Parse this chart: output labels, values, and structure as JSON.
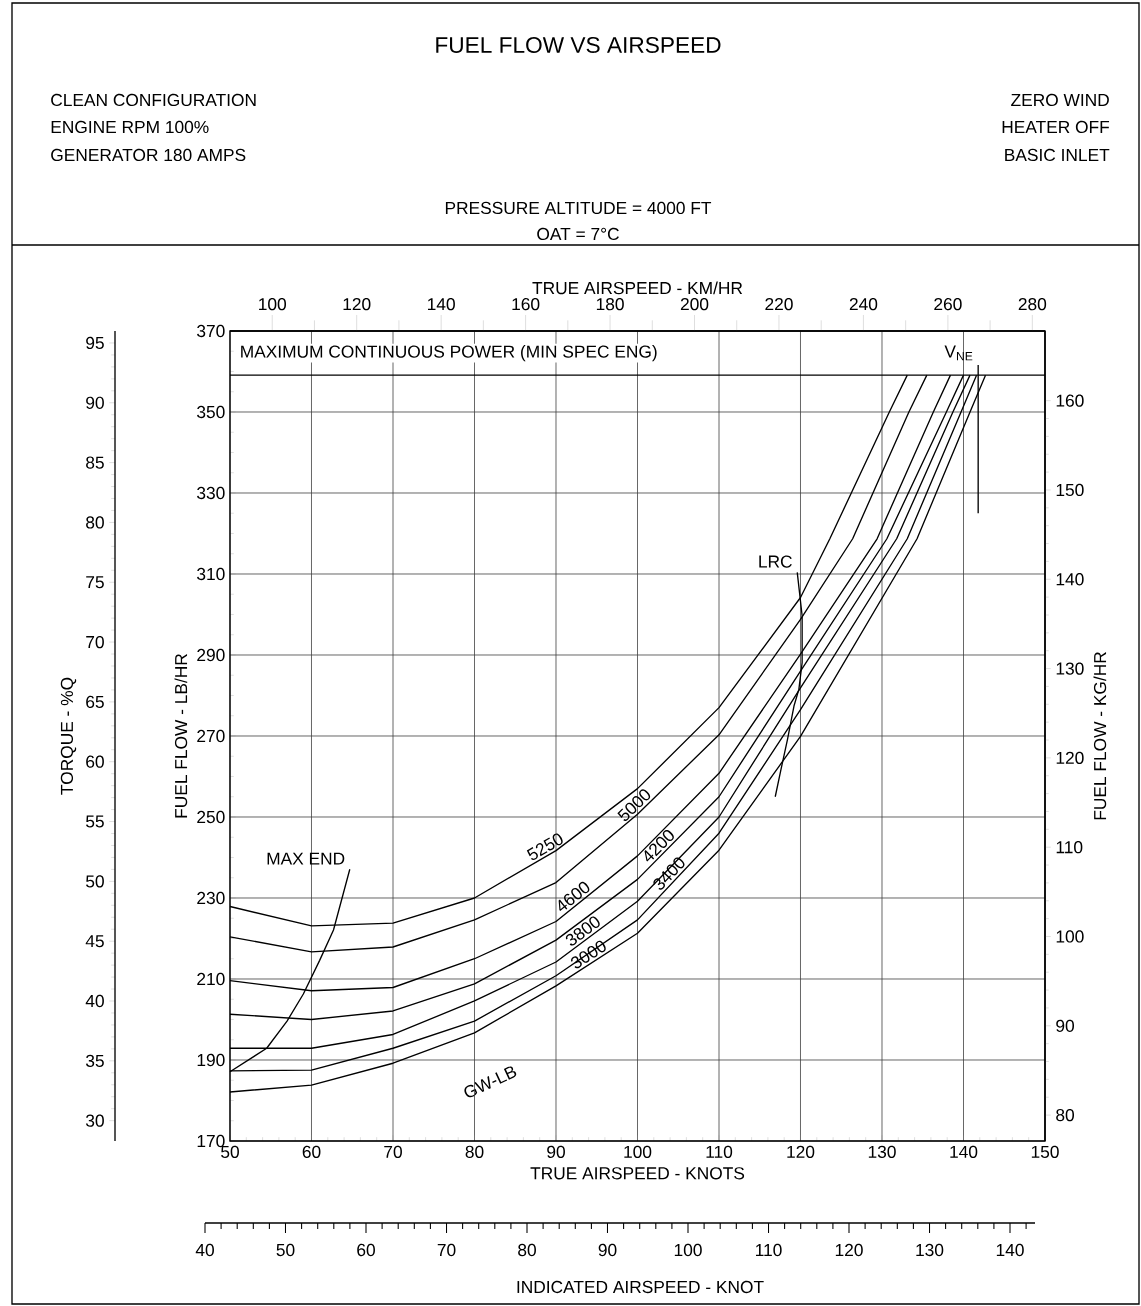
{
  "chart_data": {
    "type": "line",
    "title": "FUEL FLOW VS AIRSPEED",
    "annotations": [
      "CLEAN CONFIGURATION",
      "ENGINE RPM 100%",
      "GENERATOR 180 AMPS",
      "ZERO WIND",
      "HEATER OFF",
      "BASIC INLET",
      "PRESSURE ALTITUDE = 4000 FT",
      "OAT = 7°C",
      "GW-LB",
      "40",
      "50",
      "60",
      "70",
      "80",
      "90",
      "100",
      "110",
      "120",
      "130",
      "140",
      "INDICATED AIRSPEED - KNOT"
    ],
    "xlabel": "TRUE AIRSPEED - KNOTS",
    "ylabel": "FUEL FLOW - LB/HR",
    "y2label": "FUEL FLOW - KG/HR",
    "x2label": "TRUE AIRSPEED - KM/HR",
    "y3label": "TORQUE - %Q",
    "xlim": [
      50,
      150
    ],
    "xticks": [
      50,
      60,
      70,
      80,
      90,
      100,
      110,
      120,
      130,
      140,
      150
    ],
    "ylim": [
      170,
      370
    ],
    "yticks": [
      170,
      190,
      210,
      230,
      250,
      270,
      290,
      310,
      330,
      350,
      370
    ],
    "y2lim": [
      77.1,
      167.8
    ],
    "y2ticks": [
      80,
      90,
      100,
      110,
      120,
      130,
      140,
      150,
      160
    ],
    "x2lim": [
      90,
      283
    ],
    "x2ticks": [
      100,
      120,
      140,
      160,
      180,
      200,
      220,
      240,
      260,
      280
    ],
    "y3lim": [
      28.3,
      96.0
    ],
    "y3ticks": [
      30,
      35,
      40,
      45,
      50,
      55,
      60,
      65,
      70,
      75,
      80,
      85,
      90,
      95
    ],
    "grid": true,
    "ref_lines": [
      {
        "axis": "y",
        "value": 359.1,
        "label": "MAXIMUM CONTINUOUS POWER (MIN SPEC ENG)"
      }
    ],
    "series": [
      {
        "name": "5250",
        "color": "#000000",
        "x": [
          50,
          60,
          70,
          80,
          90,
          100,
          110,
          120,
          123.6,
          130.9,
          133.1
        ],
        "values": [
          227.9,
          223.1,
          223.8,
          230,
          241.7,
          257,
          277,
          304.2,
          318.7,
          350,
          359.1
        ]
      },
      {
        "name": "5000",
        "color": "#000000",
        "x": [
          50,
          60,
          70,
          80,
          90,
          100,
          110,
          120,
          126.4,
          133.3,
          135.5
        ],
        "values": [
          220.4,
          216.7,
          217.9,
          224.6,
          233.8,
          250.7,
          270.3,
          298.8,
          318.7,
          350,
          359.1
        ]
      },
      {
        "name": "4600",
        "color": "#000000",
        "x": [
          50,
          60,
          70,
          80,
          90,
          100,
          110,
          120,
          129.4,
          136.3,
          138.4
        ],
        "values": [
          209.6,
          207.1,
          207.9,
          215,
          224.2,
          240.4,
          260.8,
          290.2,
          318.7,
          350,
          359.1
        ]
      },
      {
        "name": "4200",
        "color": "#000000",
        "x": [
          50,
          60,
          70,
          80,
          90,
          100,
          110,
          120,
          130.6,
          137.9,
          140
        ],
        "values": [
          201.3,
          200,
          202.1,
          208.8,
          219.6,
          234.6,
          255,
          286,
          318.7,
          350,
          359.1
        ]
      },
      {
        "name": "3800",
        "color": "#000000",
        "x": [
          50,
          60,
          70,
          80,
          90,
          100,
          110,
          120,
          131.8,
          138.7,
          140.8
        ],
        "values": [
          192.9,
          192.9,
          196.3,
          204.6,
          214.2,
          229.2,
          250,
          281.9,
          318.7,
          350,
          359.1
        ]
      },
      {
        "name": "3400",
        "color": "#000000",
        "x": [
          50,
          60,
          70,
          80,
          90,
          100,
          110,
          120,
          133.1,
          139.7,
          141.6
        ],
        "values": [
          187.3,
          187.5,
          192.9,
          199.6,
          210.8,
          224.6,
          246,
          276.5,
          318.7,
          350,
          359.1
        ]
      },
      {
        "name": "3000",
        "color": "#000000",
        "x": [
          50,
          60,
          70,
          80,
          90,
          100,
          110,
          120,
          134.3,
          140.8,
          142.7
        ],
        "values": [
          182.1,
          183.8,
          189.2,
          196.7,
          208.3,
          221.3,
          241.8,
          269.9,
          318.7,
          350,
          359.1
        ]
      },
      {
        "name": "LRC",
        "color": "#000000",
        "x": [
          119.6,
          120.2,
          120.2,
          119.8,
          119.2,
          118.4,
          117.6,
          116.9
        ],
        "values": [
          310.4,
          299.7,
          288.1,
          281.5,
          277.4,
          269.1,
          261.7,
          255
        ]
      },
      {
        "name": "MAX END",
        "color": "#000000",
        "x": [
          64.7,
          62.7,
          61,
          59,
          57,
          54.5,
          50
        ],
        "values": [
          237.1,
          222.1,
          214.6,
          206.3,
          199.6,
          192.9,
          187.1
        ]
      },
      {
        "name": "V$_{NE}$",
        "color": "#000000",
        "x": [
          141.8,
          141.8
        ],
        "values": [
          361.6,
          325
        ]
      }
    ]
  }
}
